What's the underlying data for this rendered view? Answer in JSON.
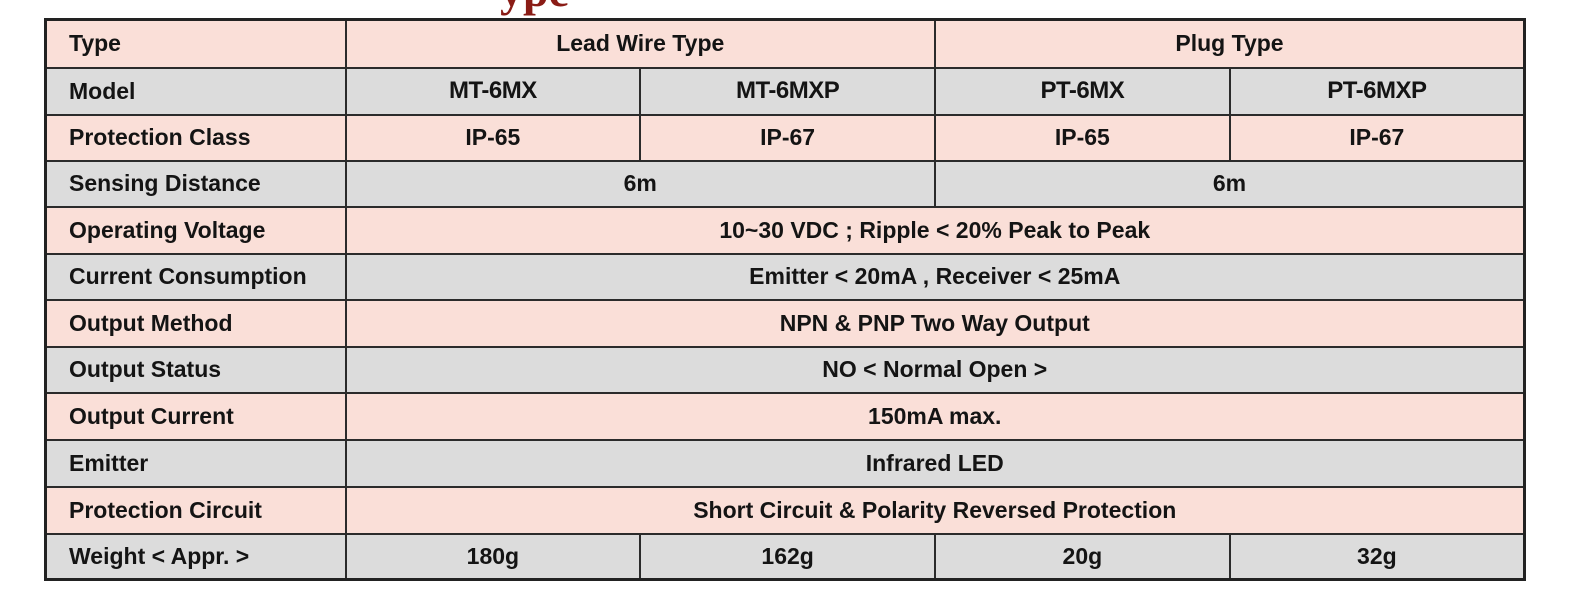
{
  "heading": {
    "visible_fragment": "ype"
  },
  "table": {
    "rows": [
      {
        "label": "Type",
        "cells": [
          {
            "text": "Lead Wire Type",
            "span": 2
          },
          {
            "text": "Plug Type",
            "span": 2
          }
        ]
      },
      {
        "label": "Model",
        "cells": [
          {
            "text": "MT-6MX",
            "span": 1
          },
          {
            "text": "MT-6MXP",
            "span": 1
          },
          {
            "text": "PT-6MX",
            "span": 1
          },
          {
            "text": "PT-6MXP",
            "span": 1
          }
        ]
      },
      {
        "label": "Protection Class",
        "cells": [
          {
            "text": "IP-65",
            "span": 1
          },
          {
            "text": "IP-67",
            "span": 1
          },
          {
            "text": "IP-65",
            "span": 1
          },
          {
            "text": "IP-67",
            "span": 1
          }
        ]
      },
      {
        "label": "Sensing Distance",
        "cells": [
          {
            "text": "6m",
            "span": 2
          },
          {
            "text": "6m",
            "span": 2
          }
        ]
      },
      {
        "label": "Operating Voltage",
        "cells": [
          {
            "text": "10~30 VDC ; Ripple < 20% Peak to Peak",
            "span": 4
          }
        ]
      },
      {
        "label": "Current Consumption",
        "cells": [
          {
            "text": "Emitter < 20mA , Receiver < 25mA",
            "span": 4
          }
        ]
      },
      {
        "label": "Output Method",
        "cells": [
          {
            "text": "NPN & PNP Two Way Output",
            "span": 4
          }
        ]
      },
      {
        "label": "Output Status",
        "cells": [
          {
            "text": "NO < Normal Open >",
            "span": 4
          }
        ]
      },
      {
        "label": "Output Current",
        "cells": [
          {
            "text": "150mA max.",
            "span": 4
          }
        ]
      },
      {
        "label": "Emitter",
        "cells": [
          {
            "text": "Infrared LED",
            "span": 4
          }
        ]
      },
      {
        "label": "Protection Circuit",
        "cells": [
          {
            "text": "Short Circuit & Polarity Reversed Protection",
            "span": 4
          }
        ]
      },
      {
        "label": "Weight < Appr. >",
        "cells": [
          {
            "text": "180g",
            "span": 1
          },
          {
            "text": "162g",
            "span": 1
          },
          {
            "text": "20g",
            "span": 1
          },
          {
            "text": "32g",
            "span": 1
          }
        ]
      }
    ]
  }
}
